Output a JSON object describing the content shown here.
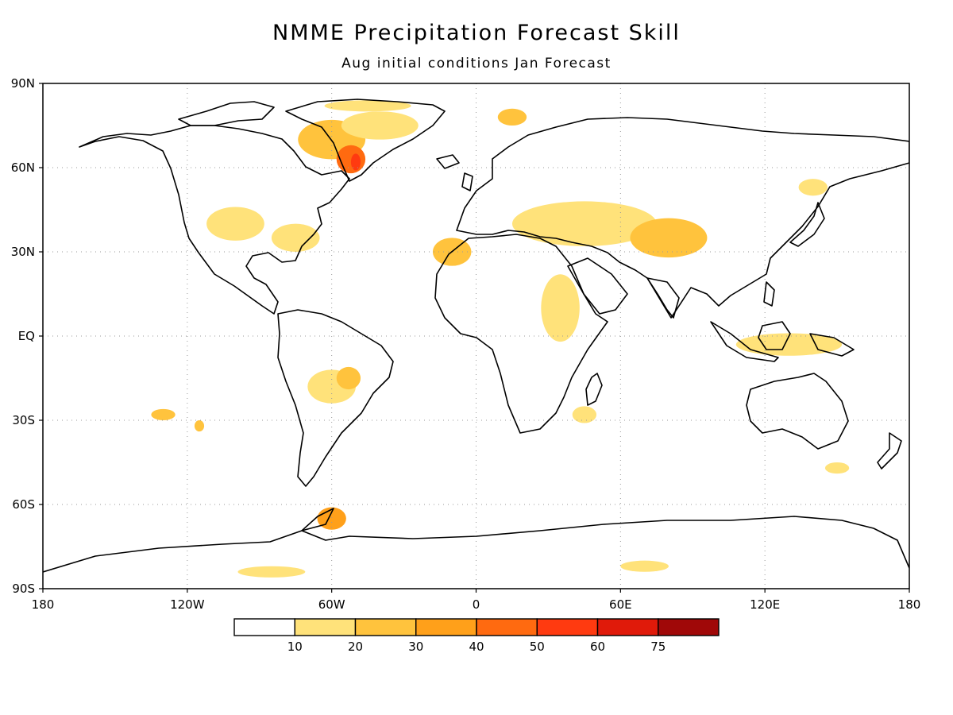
{
  "title": "NMME Precipitation Forecast Skill",
  "subtitle": "Aug initial conditions  Jan Forecast",
  "map": {
    "projection": "equirectangular",
    "lon_range": [
      -180,
      180
    ],
    "lat_range": [
      -90,
      90
    ],
    "gridlines": "dotted",
    "lat_ticks": [
      {
        "value": 90,
        "label": "90N"
      },
      {
        "value": 60,
        "label": "60N"
      },
      {
        "value": 30,
        "label": "30N"
      },
      {
        "value": 0,
        "label": "EQ"
      },
      {
        "value": -30,
        "label": "30S"
      },
      {
        "value": -60,
        "label": "60S"
      },
      {
        "value": -90,
        "label": "90S"
      }
    ],
    "lon_ticks": [
      {
        "value": -180,
        "label": "180"
      },
      {
        "value": -120,
        "label": "120W"
      },
      {
        "value": -60,
        "label": "60W"
      },
      {
        "value": 0,
        "label": "0"
      },
      {
        "value": 60,
        "label": "60E"
      },
      {
        "value": 120,
        "label": "120E"
      },
      {
        "value": 180,
        "label": "180"
      }
    ]
  },
  "colorbar": {
    "bins": [
      "#ffffff",
      "#ffe27a",
      "#ffc33d",
      "#ffa01a",
      "#ff6a10",
      "#ff3a10",
      "#e01a0a",
      "#a00808"
    ],
    "labels": [
      "10",
      "20",
      "30",
      "40",
      "50",
      "60",
      "75"
    ]
  },
  "skill_regions": [
    {
      "lon": -60,
      "lat": 70,
      "rx": 14,
      "ry": 7,
      "bin": 2
    },
    {
      "lon": -52,
      "lat": 63,
      "rx": 6,
      "ry": 5,
      "bin": 4
    },
    {
      "lon": -50,
      "lat": 62,
      "rx": 2,
      "ry": 3,
      "bin": 5
    },
    {
      "lon": -40,
      "lat": 75,
      "rx": 16,
      "ry": 5,
      "bin": 1
    },
    {
      "lon": -45,
      "lat": 82,
      "rx": 18,
      "ry": 2,
      "bin": 1
    },
    {
      "lon": -100,
      "lat": 40,
      "rx": 12,
      "ry": 6,
      "bin": 1
    },
    {
      "lon": -75,
      "lat": 35,
      "rx": 10,
      "ry": 5,
      "bin": 1
    },
    {
      "lon": -60,
      "lat": -18,
      "rx": 10,
      "ry": 6,
      "bin": 1
    },
    {
      "lon": -53,
      "lat": -15,
      "rx": 5,
      "ry": 4,
      "bin": 2
    },
    {
      "lon": -60,
      "lat": -65,
      "rx": 6,
      "ry": 4,
      "bin": 3
    },
    {
      "lon": -10,
      "lat": 30,
      "rx": 8,
      "ry": 5,
      "bin": 2
    },
    {
      "lon": 45,
      "lat": 40,
      "rx": 30,
      "ry": 8,
      "bin": 1
    },
    {
      "lon": 80,
      "lat": 35,
      "rx": 16,
      "ry": 7,
      "bin": 2
    },
    {
      "lon": 35,
      "lat": 10,
      "rx": 8,
      "ry": 12,
      "bin": 1
    },
    {
      "lon": 130,
      "lat": -3,
      "rx": 22,
      "ry": 4,
      "bin": 1
    },
    {
      "lon": 140,
      "lat": 53,
      "rx": 6,
      "ry": 3,
      "bin": 1
    },
    {
      "lon": 15,
      "lat": 78,
      "rx": 6,
      "ry": 3,
      "bin": 2
    },
    {
      "lon": 150,
      "lat": -47,
      "rx": 5,
      "ry": 2,
      "bin": 1
    },
    {
      "lon": -130,
      "lat": -28,
      "rx": 5,
      "ry": 2,
      "bin": 2
    },
    {
      "lon": -115,
      "lat": -32,
      "rx": 2,
      "ry": 2,
      "bin": 2
    },
    {
      "lon": 45,
      "lat": -28,
      "rx": 5,
      "ry": 3,
      "bin": 1
    },
    {
      "lon": 70,
      "lat": -82,
      "rx": 10,
      "ry": 2,
      "bin": 1
    },
    {
      "lon": -85,
      "lat": -84,
      "rx": 14,
      "ry": 2,
      "bin": 1
    }
  ]
}
